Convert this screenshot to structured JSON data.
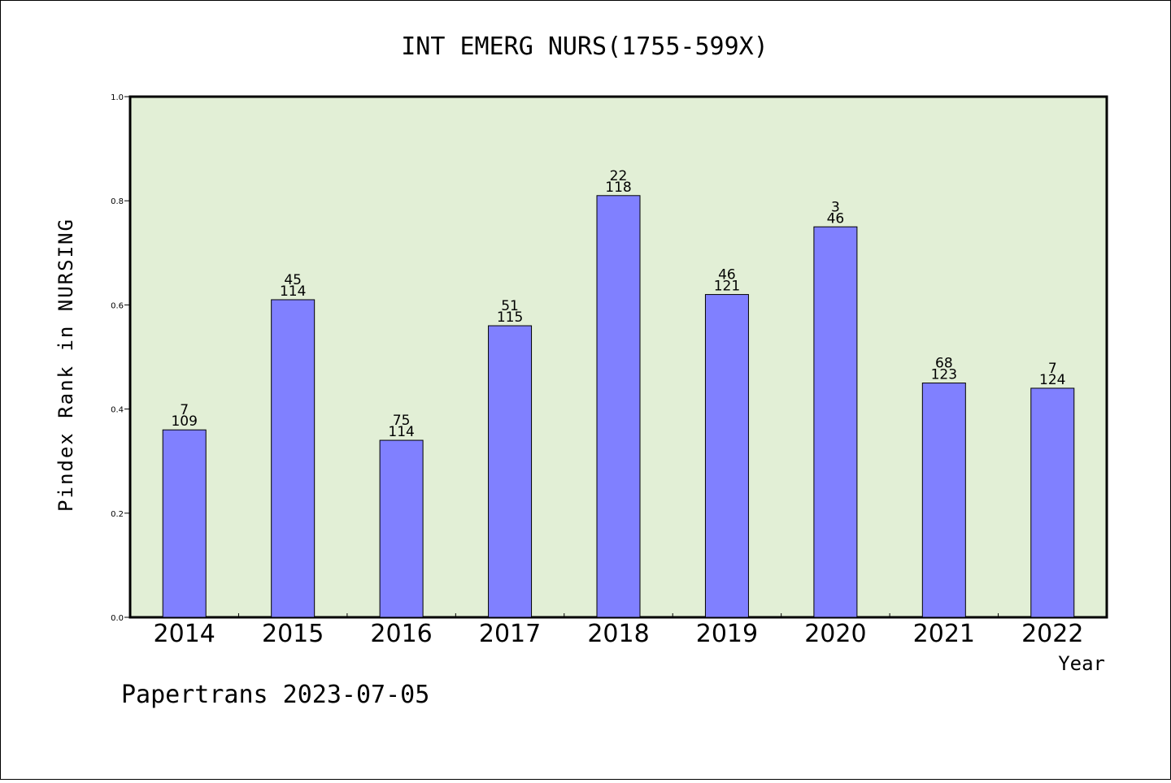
{
  "chart_data": {
    "type": "bar",
    "title": "INT EMERG NURS(1755-599X)",
    "xlabel": "Year",
    "ylabel": "Pindex Rank in NURSING",
    "categories": [
      "2014",
      "2015",
      "2016",
      "2017",
      "2018",
      "2019",
      "2020",
      "2021",
      "2022"
    ],
    "values": [
      0.36,
      0.61,
      0.34,
      0.56,
      0.81,
      0.62,
      0.75,
      0.45,
      0.44
    ],
    "rank_labels": [
      "7",
      "45",
      "75",
      "51",
      "22",
      "46",
      "3",
      "68",
      "7"
    ],
    "total_labels": [
      "109",
      "114",
      "114",
      "115",
      "118",
      "121",
      "46",
      "123",
      "124"
    ],
    "ylim": [
      0,
      1.0
    ],
    "yticks": [
      "0.0",
      "0.2",
      "0.4",
      "0.6",
      "0.8",
      "1.0"
    ],
    "grid": false,
    "plot_background": "#e2efd6",
    "bar_color": "#8080ff"
  },
  "footer": "Papertrans 2023-07-05"
}
